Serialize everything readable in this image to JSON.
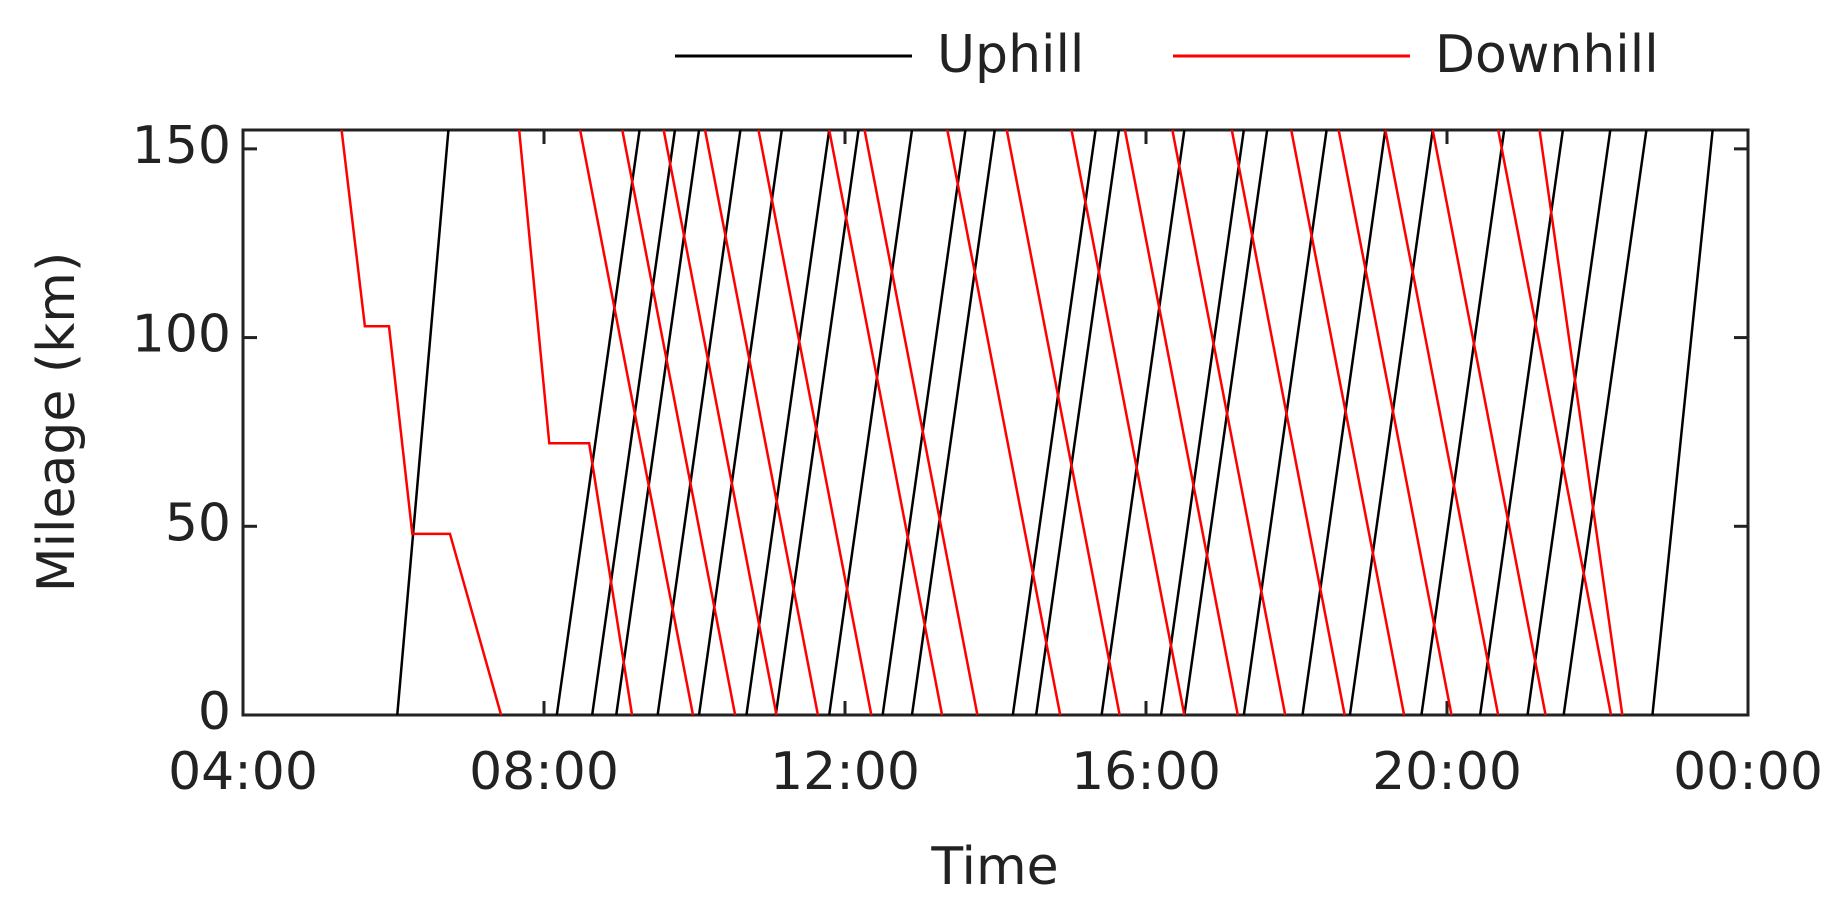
{
  "chart_data": {
    "type": "line",
    "xlabel": "Time",
    "ylabel": "Mileage (km)",
    "xlim": [
      4,
      24
    ],
    "xticks": [
      {
        "value": 4,
        "label": "04:00"
      },
      {
        "value": 8,
        "label": "08:00"
      },
      {
        "value": 12,
        "label": "12:00"
      },
      {
        "value": 16,
        "label": "16:00"
      },
      {
        "value": 20,
        "label": "20:00"
      },
      {
        "value": 24,
        "label": "00:00"
      }
    ],
    "ylim": [
      0,
      155
    ],
    "yticks": [
      0,
      50,
      100,
      150
    ],
    "legend": "top",
    "series": [
      {
        "name": "Uphill",
        "color": "#000000",
        "trains": [
          {
            "x": [
              6.05,
              6.73
            ],
            "y": [
              0,
              155
            ]
          },
          {
            "x": [
              8.17,
              9.27
            ],
            "y": [
              0,
              155
            ]
          },
          {
            "x": [
              8.64,
              9.74
            ],
            "y": [
              0,
              155
            ]
          },
          {
            "x": [
              8.96,
              10.06
            ],
            "y": [
              0,
              155
            ]
          },
          {
            "x": [
              9.51,
              10.61
            ],
            "y": [
              0,
              155
            ]
          },
          {
            "x": [
              10.06,
              11.16
            ],
            "y": [
              0,
              155
            ]
          },
          {
            "x": [
              10.69,
              11.79
            ],
            "y": [
              0,
              155
            ]
          },
          {
            "x": [
              11.08,
              12.18
            ],
            "y": [
              0,
              155
            ]
          },
          {
            "x": [
              11.79,
              12.89
            ],
            "y": [
              0,
              155
            ]
          },
          {
            "x": [
              12.5,
              13.6
            ],
            "y": [
              0,
              155
            ]
          },
          {
            "x": [
              12.89,
              13.99
            ],
            "y": [
              0,
              155
            ]
          },
          {
            "x": [
              14.23,
              15.33
            ],
            "y": [
              0,
              155
            ]
          },
          {
            "x": [
              14.54,
              15.64
            ],
            "y": [
              0,
              155
            ]
          },
          {
            "x": [
              15.41,
              16.51
            ],
            "y": [
              0,
              155
            ]
          },
          {
            "x": [
              16.2,
              17.3
            ],
            "y": [
              0,
              155
            ]
          },
          {
            "x": [
              16.51,
              17.61
            ],
            "y": [
              0,
              155
            ]
          },
          {
            "x": [
              17.3,
              18.4
            ],
            "y": [
              0,
              155
            ]
          },
          {
            "x": [
              18.08,
              19.18
            ],
            "y": [
              0,
              155
            ]
          },
          {
            "x": [
              18.71,
              19.81
            ],
            "y": [
              0,
              155
            ]
          },
          {
            "x": [
              19.66,
              20.76
            ],
            "y": [
              0,
              155
            ]
          },
          {
            "x": [
              20.44,
              21.54
            ],
            "y": [
              0,
              155
            ]
          },
          {
            "x": [
              21.07,
              22.17
            ],
            "y": [
              0,
              155
            ]
          },
          {
            "x": [
              21.55,
              22.65
            ],
            "y": [
              0,
              155
            ]
          },
          {
            "x": [
              22.73,
              23.53
            ],
            "y": [
              0,
              155
            ]
          }
        ]
      },
      {
        "name": "Downhill",
        "color": "#ff0000",
        "trains": [
          {
            "x": [
              5.31,
              5.62,
              5.94,
              6.25,
              6.75,
              7.43
            ],
            "y": [
              155,
              103,
              103,
              48,
              48,
              0
            ]
          },
          {
            "x": [
              7.67,
              8.07,
              8.6,
              9.17
            ],
            "y": [
              155,
              72,
              72,
              0
            ]
          },
          {
            "x": [
              8.48,
              9.98
            ],
            "y": [
              155,
              0
            ]
          },
          {
            "x": [
              9.04,
              10.54
            ],
            "y": [
              155,
              0
            ]
          },
          {
            "x": [
              9.59,
              11.09
            ],
            "y": [
              155,
              0
            ]
          },
          {
            "x": [
              10.14,
              11.64
            ],
            "y": [
              155,
              0
            ]
          },
          {
            "x": [
              10.85,
              12.35
            ],
            "y": [
              155,
              0
            ]
          },
          {
            "x": [
              11.79,
              13.29
            ],
            "y": [
              155,
              0
            ]
          },
          {
            "x": [
              12.26,
              13.76
            ],
            "y": [
              155,
              0
            ]
          },
          {
            "x": [
              13.36,
              14.86
            ],
            "y": [
              155,
              0
            ]
          },
          {
            "x": [
              14.15,
              15.65
            ],
            "y": [
              155,
              0
            ]
          },
          {
            "x": [
              15.01,
              16.51
            ],
            "y": [
              155,
              0
            ]
          },
          {
            "x": [
              15.72,
              17.22
            ],
            "y": [
              155,
              0
            ]
          },
          {
            "x": [
              16.35,
              17.85
            ],
            "y": [
              155,
              0
            ]
          },
          {
            "x": [
              17.14,
              18.64
            ],
            "y": [
              155,
              0
            ]
          },
          {
            "x": [
              17.93,
              19.43
            ],
            "y": [
              155,
              0
            ]
          },
          {
            "x": [
              18.56,
              20.06
            ],
            "y": [
              155,
              0
            ]
          },
          {
            "x": [
              19.18,
              20.68
            ],
            "y": [
              155,
              0
            ]
          },
          {
            "x": [
              19.81,
              21.31
            ],
            "y": [
              155,
              0
            ]
          },
          {
            "x": [
              20.68,
              22.18
            ],
            "y": [
              155,
              0
            ]
          },
          {
            "x": [
              21.23,
              22.33
            ],
            "y": [
              155,
              0
            ]
          }
        ]
      }
    ]
  }
}
